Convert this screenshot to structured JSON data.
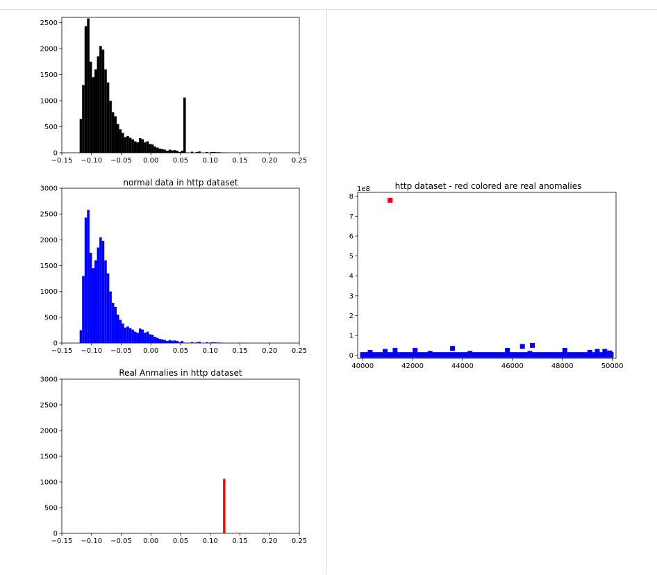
{
  "charts": [
    {
      "type": "bar",
      "title": "",
      "color": "#000000",
      "xlim": [
        -0.15,
        0.25
      ],
      "ylim": [
        0,
        2600
      ],
      "xticks": [
        -0.15,
        -0.1,
        -0.05,
        0.0,
        0.05,
        0.1,
        0.15,
        0.2,
        0.25
      ],
      "xtick_labels": [
        "−0.15",
        "−0.10",
        "−0.05",
        "0.00",
        "0.05",
        "0.10",
        "0.15",
        "0.20",
        "0.25"
      ],
      "yticks": [
        0,
        500,
        1000,
        1500,
        2000,
        2500
      ],
      "ytick_labels": [
        "0",
        "500",
        "1000",
        "1500",
        "2000",
        "2500"
      ],
      "bin_start": -0.12,
      "bin_width": 0.00416,
      "values": [
        650,
        1300,
        2430,
        2580,
        1750,
        1450,
        1600,
        1850,
        2050,
        1980,
        1600,
        1350,
        1000,
        780,
        700,
        550,
        450,
        380,
        300,
        320,
        290,
        260,
        220,
        200,
        280,
        260,
        200,
        220,
        170,
        160,
        120,
        100,
        80,
        70,
        60,
        40,
        60,
        45,
        50,
        40,
        15,
        40,
        1060,
        5,
        0,
        20,
        0,
        15,
        25,
        0,
        0,
        15,
        0,
        15,
        15,
        10,
        10,
        5,
        5,
        0
      ]
    },
    {
      "type": "bar",
      "title": "normal data in http dataset",
      "color": "#0000ff",
      "xlim": [
        -0.15,
        0.25
      ],
      "ylim": [
        0,
        3000
      ],
      "xticks": [
        -0.15,
        -0.1,
        -0.05,
        0.0,
        0.05,
        0.1,
        0.15,
        0.2,
        0.25
      ],
      "xtick_labels": [
        "−0.15",
        "−0.10",
        "−0.05",
        "0.00",
        "0.05",
        "0.10",
        "0.15",
        "0.20",
        "0.25"
      ],
      "yticks": [
        0,
        500,
        1000,
        1500,
        2000,
        2500,
        3000
      ],
      "ytick_labels": [
        "0",
        "500",
        "1000",
        "1500",
        "2000",
        "2500",
        "3000"
      ],
      "bin_start": -0.12,
      "bin_width": 0.00416,
      "values": [
        250,
        1300,
        2430,
        2580,
        1750,
        1450,
        1600,
        1850,
        2050,
        1980,
        1600,
        1350,
        1000,
        780,
        700,
        550,
        450,
        380,
        300,
        320,
        290,
        260,
        220,
        200,
        280,
        260,
        200,
        220,
        170,
        160,
        120,
        100,
        80,
        70,
        60,
        40,
        60,
        45,
        50,
        40,
        15,
        40,
        5,
        5,
        0,
        20,
        0,
        15,
        25,
        0,
        0,
        15,
        0,
        15,
        15,
        10,
        10,
        5,
        5,
        0
      ]
    },
    {
      "type": "bar",
      "title": "Real Anmalies in http dataset",
      "color": "#ff0000",
      "xlim": [
        -0.15,
        0.25
      ],
      "ylim": [
        0,
        3000
      ],
      "xticks": [
        -0.15,
        -0.1,
        -0.05,
        0.0,
        0.05,
        0.1,
        0.15,
        0.2,
        0.25
      ],
      "xtick_labels": [
        "−0.15",
        "−0.10",
        "−0.05",
        "0.00",
        "0.05",
        "0.10",
        "0.15",
        "0.20",
        "0.25"
      ],
      "yticks": [
        0,
        500,
        1000,
        1500,
        2000,
        2500,
        3000
      ],
      "ytick_labels": [
        "0",
        "500",
        "1000",
        "1500",
        "2000",
        "2500",
        "3000"
      ],
      "bars": [
        {
          "x": 0.1215,
          "w": 0.004,
          "v": 1060
        },
        {
          "x": 0.1395,
          "w": 0.006,
          "v": 8
        },
        {
          "x": 0.19,
          "w": 0.004,
          "v": 5
        },
        {
          "x": 0.204,
          "w": 0.004,
          "v": 5
        }
      ]
    },
    {
      "type": "scatter",
      "title": "http dataset - red colored are real anomalies",
      "exponent_label": "1e8",
      "xlim": [
        39800,
        50150
      ],
      "ylim": [
        -0.15,
        8.2
      ],
      "xticks": [
        40000,
        42000,
        44000,
        46000,
        48000,
        50000
      ],
      "xtick_labels": [
        "40000",
        "42000",
        "44000",
        "46000",
        "48000",
        "50000"
      ],
      "yticks": [
        0,
        1,
        2,
        3,
        4,
        5,
        6,
        7,
        8
      ],
      "ytick_labels": [
        "0",
        "1",
        "2",
        "3",
        "4",
        "5",
        "6",
        "7",
        "8"
      ],
      "baseline": {
        "x_start": 39900,
        "x_end": 50050,
        "y": 0.02,
        "color": "#0000ff"
      },
      "normal_points": [
        {
          "x": 40300,
          "y": 0.15
        },
        {
          "x": 40900,
          "y": 0.2
        },
        {
          "x": 41300,
          "y": 0.25
        },
        {
          "x": 42100,
          "y": 0.25
        },
        {
          "x": 42700,
          "y": 0.1
        },
        {
          "x": 43600,
          "y": 0.35
        },
        {
          "x": 44300,
          "y": 0.1
        },
        {
          "x": 45800,
          "y": 0.25
        },
        {
          "x": 46400,
          "y": 0.45
        },
        {
          "x": 46700,
          "y": 0.1
        },
        {
          "x": 46800,
          "y": 0.5
        },
        {
          "x": 48100,
          "y": 0.25
        },
        {
          "x": 49100,
          "y": 0.15
        },
        {
          "x": 49400,
          "y": 0.2
        },
        {
          "x": 49700,
          "y": 0.2
        },
        {
          "x": 49900,
          "y": 0.12
        }
      ],
      "anomaly_points": [
        {
          "x": 41100,
          "y": 7.8
        }
      ],
      "normal_color": "#0000ff",
      "anomaly_color": "#ff0000"
    }
  ]
}
